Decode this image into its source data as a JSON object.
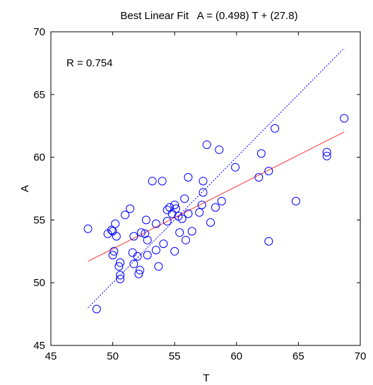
{
  "chart_data": {
    "type": "scatter",
    "title": "Best Linear Fit   A = (0.498) T + (27.8)",
    "xlabel": "T",
    "ylabel": "A",
    "xlim": [
      45,
      70
    ],
    "ylim": [
      45,
      70
    ],
    "xticks": [
      45,
      50,
      55,
      60,
      65,
      70
    ],
    "yticks": [
      45,
      50,
      55,
      60,
      65,
      70
    ],
    "annotation": "R = 0.754",
    "grid": false,
    "colors": {
      "points": "#0000ff",
      "fit_line": "#ff3333",
      "identity_line": "#0000ff"
    },
    "fit_line": {
      "slope": 0.498,
      "intercept": 27.8,
      "x_range": [
        48.0,
        68.7
      ]
    },
    "identity_line": {
      "x_range": [
        48.0,
        68.7
      ]
    },
    "points": [
      [
        48.0,
        54.3
      ],
      [
        48.7,
        47.9
      ],
      [
        49.6,
        53.9
      ],
      [
        49.9,
        54.2
      ],
      [
        50.0,
        54.1
      ],
      [
        50.1,
        52.5
      ],
      [
        50.0,
        52.2
      ],
      [
        50.2,
        54.7
      ],
      [
        50.3,
        53.7
      ],
      [
        50.5,
        51.3
      ],
      [
        50.6,
        51.6
      ],
      [
        50.6,
        50.6
      ],
      [
        50.6,
        50.3
      ],
      [
        51.0,
        55.4
      ],
      [
        51.4,
        55.9
      ],
      [
        51.6,
        52.4
      ],
      [
        51.7,
        51.5
      ],
      [
        51.7,
        53.7
      ],
      [
        52.0,
        52.1
      ],
      [
        52.1,
        50.7
      ],
      [
        52.2,
        51.0
      ],
      [
        52.3,
        54.0
      ],
      [
        52.6,
        53.9
      ],
      [
        52.7,
        55.0
      ],
      [
        52.8,
        53.4
      ],
      [
        52.8,
        52.2
      ],
      [
        53.2,
        58.1
      ],
      [
        53.5,
        52.6
      ],
      [
        53.5,
        54.7
      ],
      [
        53.7,
        51.3
      ],
      [
        54.0,
        58.1
      ],
      [
        54.1,
        53.1
      ],
      [
        54.4,
        54.9
      ],
      [
        54.4,
        55.8
      ],
      [
        54.6,
        56.0
      ],
      [
        54.8,
        55.5
      ],
      [
        55.0,
        56.2
      ],
      [
        55.1,
        55.9
      ],
      [
        55.0,
        52.5
      ],
      [
        55.3,
        55.3
      ],
      [
        55.4,
        54.0
      ],
      [
        55.6,
        55.1
      ],
      [
        55.8,
        56.7
      ],
      [
        55.9,
        53.4
      ],
      [
        56.1,
        58.4
      ],
      [
        56.1,
        55.5
      ],
      [
        56.4,
        54.1
      ],
      [
        57.0,
        55.6
      ],
      [
        57.2,
        56.2
      ],
      [
        57.3,
        57.2
      ],
      [
        57.3,
        58.1
      ],
      [
        57.6,
        61.0
      ],
      [
        57.9,
        54.8
      ],
      [
        58.3,
        56.0
      ],
      [
        58.6,
        60.6
      ],
      [
        58.8,
        56.5
      ],
      [
        59.9,
        59.2
      ],
      [
        61.8,
        58.4
      ],
      [
        62.0,
        60.3
      ],
      [
        62.6,
        58.9
      ],
      [
        62.6,
        53.3
      ],
      [
        63.1,
        62.3
      ],
      [
        64.8,
        56.5
      ],
      [
        67.3,
        60.1
      ],
      [
        67.3,
        60.4
      ],
      [
        68.7,
        63.1
      ]
    ]
  }
}
